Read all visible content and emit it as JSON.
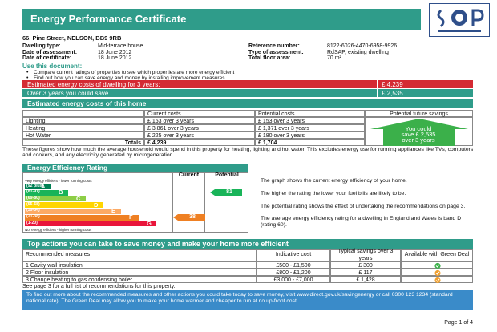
{
  "header": {
    "title": "Energy Performance Certificate",
    "address": "66, Pine Street, NELSON, BB9 9RB"
  },
  "details": [
    [
      "Dwelling type:",
      "Mid-terrace house",
      "Reference number:",
      "8122-6026-4470-6958-9926"
    ],
    [
      "Date of assessment:",
      "18   June   2012",
      "Type of assessment:",
      "RdSAP, existing dwelling"
    ],
    [
      "Date of certificate:",
      "18   June   2012",
      "Total floor area:",
      "70 m²"
    ]
  ],
  "use": {
    "heading": "Use this document:",
    "bullets": [
      "Compare current ratings of properties to see which properties are more energy efficient",
      "Find out how you can save energy and money by installing improvement measures"
    ]
  },
  "summary": [
    [
      "Estimated energy costs of dwelling for 3 years:",
      "£ 4,239"
    ],
    [
      "Over 3 years you could save",
      "£ 2,535"
    ]
  ],
  "costs": {
    "heading": "Estimated energy costs of this home",
    "columns": [
      "Current costs",
      "Potential costs",
      "Potential future savings"
    ],
    "rows": [
      [
        "Lighting",
        "£ 153 over 3 years",
        "£ 153 over 3 years"
      ],
      [
        "Heating",
        "£ 3,861 over 3 years",
        "£ 1,371 over 3 years"
      ],
      [
        "Hot Water",
        "£ 225 over 3 years",
        "£ 180 over 3 years"
      ],
      [
        "Totals",
        "£ 4,239",
        "£ 1,704"
      ]
    ],
    "savings": [
      "You could",
      "save £ 2,535",
      "over 3 years"
    ],
    "note": "These figures show how much the average household would spend in this property for heating, lighting and hot water. This excludes energy use for running appliances like TVs, computers and cookers, and any electricity generated by microgeneration."
  },
  "rating": {
    "heading": "Energy Efficiency Rating",
    "columns": [
      "Current",
      "Potential"
    ],
    "top": "Very energy efficient - lower running costs",
    "bottom": "Not energy efficient - higher running costs",
    "bands": [
      [
        "(92 plus)",
        "A"
      ],
      [
        "(81-91)",
        "B"
      ],
      [
        "(69-80)",
        "C"
      ],
      [
        "(55-68)",
        "D"
      ],
      [
        "(39-54)",
        "E"
      ],
      [
        "(21-38)",
        "F"
      ],
      [
        "(1-20)",
        "G"
      ]
    ],
    "current": 38,
    "potential": 81,
    "notes": [
      "The graph shows the current energy efficiency of your home.",
      "The higher the rating the lower your fuel bills are likely to be.",
      "The potential rating shows the effect of undertaking the recommendations on page 3.",
      "The average energy efficiency rating for a dwelling in England and Wales is band D (rating 60)."
    ]
  },
  "actions": {
    "heading": "Top actions you can take to save money and make your home more efficient",
    "columns": [
      "Recommended measures",
      "Indicative cost",
      "Typical savings over 3 years",
      "Available with Green Deal"
    ],
    "rows": [
      [
        "1  Cavity wall insulation",
        "£500 - £1,500",
        "£ 300"
      ],
      [
        "2  Floor insulation",
        "£800 - £1,200",
        "£ 117"
      ],
      [
        "3  Change heating to gas condensing boiler",
        "£3,000 - £7,000",
        "£ 1,428"
      ]
    ],
    "note": "See page 3 for a full list of recommendations for this property."
  },
  "footer": {
    "text": "To find out more about the recommended measures and other actions you could take today to save money, visit www.direct.gov.uk/savingenergy or call 0300 123 1234 (standard national rate). The Green Deal may allow you to make your home warmer and cheaper to run at no up-front cost.",
    "page": "Page 1 of 4"
  }
}
